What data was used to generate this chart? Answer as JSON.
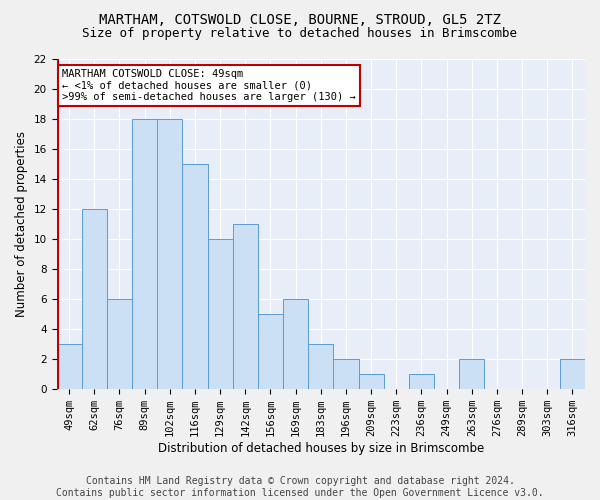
{
  "title": "MARTHAM, COTSWOLD CLOSE, BOURNE, STROUD, GL5 2TZ",
  "subtitle": "Size of property relative to detached houses in Brimscombe",
  "xlabel": "Distribution of detached houses by size in Brimscombe",
  "ylabel": "Number of detached properties",
  "categories": [
    "49sqm",
    "62sqm",
    "76sqm",
    "89sqm",
    "102sqm",
    "116sqm",
    "129sqm",
    "142sqm",
    "156sqm",
    "169sqm",
    "183sqm",
    "196sqm",
    "209sqm",
    "223sqm",
    "236sqm",
    "249sqm",
    "263sqm",
    "276sqm",
    "289sqm",
    "303sqm",
    "316sqm"
  ],
  "values": [
    3,
    12,
    6,
    18,
    18,
    15,
    10,
    11,
    5,
    6,
    3,
    2,
    1,
    0,
    1,
    0,
    2,
    0,
    0,
    0,
    2
  ],
  "bar_color": "#cce0f5",
  "bar_edge_color": "#5b9bd5",
  "highlight_color": "#c00000",
  "annotation_line1": "MARTHAM COTSWOLD CLOSE: 49sqm",
  "annotation_line2": "← <1% of detached houses are smaller (0)",
  "annotation_line3": ">99% of semi-detached houses are larger (130) →",
  "annotation_box_color": "#ffffff",
  "annotation_box_edge": "#c00000",
  "ylim": [
    0,
    22
  ],
  "yticks": [
    0,
    2,
    4,
    6,
    8,
    10,
    12,
    14,
    16,
    18,
    20,
    22
  ],
  "footer_line1": "Contains HM Land Registry data © Crown copyright and database right 2024.",
  "footer_line2": "Contains public sector information licensed under the Open Government Licence v3.0.",
  "plot_bg_color": "#e8eef8",
  "fig_bg_color": "#f0f0f0",
  "grid_color": "#ffffff",
  "title_fontsize": 10,
  "subtitle_fontsize": 9,
  "axis_label_fontsize": 8.5,
  "tick_fontsize": 7.5,
  "annotation_fontsize": 7.5,
  "footer_fontsize": 7
}
